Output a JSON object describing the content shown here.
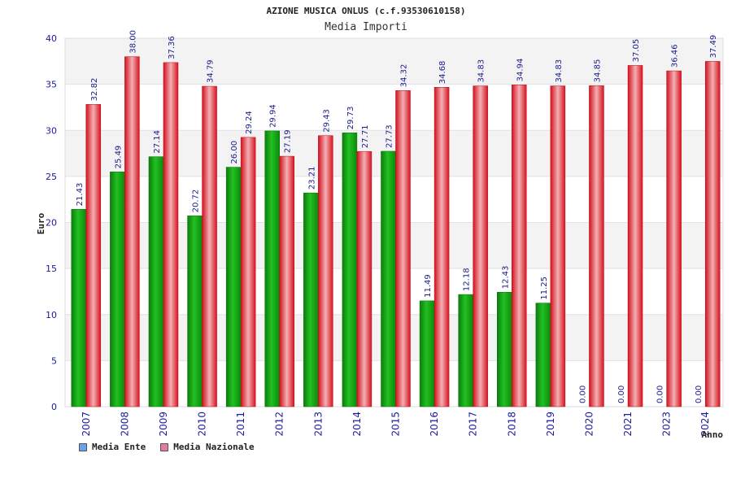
{
  "chart_data": {
    "type": "bar",
    "title": "AZIONE MUSICA ONLUS (c.f.93530610158)",
    "subtitle": "Media Importi",
    "ylabel": "Euro",
    "xlabel": "Anno",
    "ylim": [
      0,
      40
    ],
    "yticks": [
      0,
      5,
      10,
      15,
      20,
      25,
      30,
      35,
      40
    ],
    "grid": true,
    "legend_position": "bottom-left",
    "categories": [
      "2007",
      "2008",
      "2009",
      "2010",
      "2011",
      "2012",
      "2013",
      "2014",
      "2015",
      "2016",
      "2017",
      "2018",
      "2019",
      "2020",
      "2021",
      "2023",
      "2024"
    ],
    "series": [
      {
        "name": "Media Ente",
        "legend_color": "#6aa2e8",
        "bar_color": "#1aa81a",
        "values": [
          21.43,
          25.49,
          27.14,
          20.72,
          26.0,
          29.94,
          23.21,
          29.73,
          27.73,
          11.49,
          12.18,
          12.43,
          11.25,
          0.0,
          0.0,
          0.0,
          0.0
        ],
        "labels": [
          "21.43",
          "25.49",
          "27.14",
          "20.72",
          "26.00",
          "29.94",
          "23.21",
          "29.73",
          "27.73",
          "11.49",
          "12.18",
          "12.43",
          "11.25",
          "0.00",
          "0.00",
          "0.00",
          "0.00"
        ]
      },
      {
        "name": "Media Nazionale",
        "legend_color": "#e07aa6",
        "bar_color": "#e8283a",
        "values": [
          32.82,
          38.0,
          37.36,
          34.79,
          29.24,
          27.19,
          29.43,
          27.71,
          34.32,
          34.68,
          34.83,
          34.94,
          34.83,
          34.85,
          37.05,
          36.46,
          37.49
        ],
        "labels": [
          "32.82",
          "38.00",
          "37.36",
          "34.79",
          "29.24",
          "27.19",
          "29.43",
          "27.71",
          "34.32",
          "34.68",
          "34.83",
          "34.94",
          "34.83",
          "34.85",
          "37.05",
          "36.46",
          "37.49"
        ]
      }
    ]
  }
}
